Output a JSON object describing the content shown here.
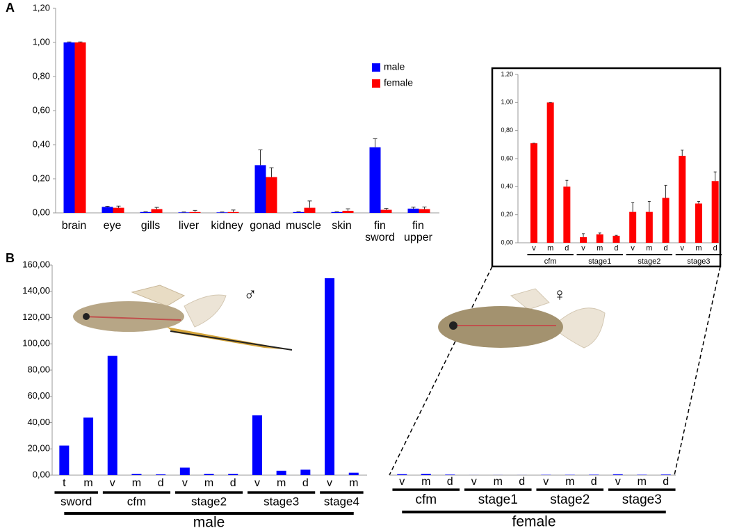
{
  "chart_data": [
    {
      "type": "bar",
      "panel_label": "A",
      "categories": [
        "brain",
        "eye",
        "gills",
        "liver",
        "kidney",
        "gonad",
        "muscle",
        "skin",
        "fin sword",
        "fin upper"
      ],
      "series": [
        {
          "name": "male",
          "color": "#0000ff",
          "values": [
            1.0,
            0.035,
            0.005,
            0.003,
            0.003,
            0.28,
            0.005,
            0.005,
            0.385,
            0.025
          ],
          "errors": [
            0.003,
            0.004,
            0.002,
            0.002,
            0.002,
            0.09,
            0.002,
            0.002,
            0.05,
            0.008
          ]
        },
        {
          "name": "female",
          "color": "#ff0000",
          "values": [
            1.0,
            0.03,
            0.022,
            0.005,
            0.005,
            0.21,
            0.03,
            0.012,
            0.018,
            0.022
          ],
          "errors": [
            0.003,
            0.01,
            0.01,
            0.01,
            0.012,
            0.055,
            0.04,
            0.012,
            0.008,
            0.012
          ]
        }
      ],
      "ylim": [
        0,
        1.2
      ],
      "yticks": [
        {
          "value": 0,
          "label": "0,00"
        },
        {
          "value": 0.2,
          "label": "0,20"
        },
        {
          "value": 0.4,
          "label": "0,40"
        },
        {
          "value": 0.6,
          "label": "0,60"
        },
        {
          "value": 0.8,
          "label": "0,80"
        },
        {
          "value": 1.0,
          "label": "1,00"
        },
        {
          "value": 1.2,
          "label": "1,20"
        }
      ],
      "legend": "upper right"
    },
    {
      "type": "bar",
      "panel_label": "B",
      "annotation": "♂",
      "color": "#0000ff",
      "group_label": "male",
      "groups": [
        {
          "name": "sword",
          "categories": [
            "t",
            "m"
          ],
          "values": [
            22.5,
            43.8
          ]
        },
        {
          "name": "cfm",
          "categories": [
            "v",
            "m",
            "d"
          ],
          "values": [
            90.8,
            1.0,
            0.6
          ]
        },
        {
          "name": "stage2",
          "categories": [
            "v",
            "m",
            "d"
          ],
          "values": [
            5.7,
            1.0,
            1.0
          ]
        },
        {
          "name": "stage3",
          "categories": [
            "v",
            "m",
            "d"
          ],
          "values": [
            45.5,
            3.3,
            4.2
          ]
        },
        {
          "name": "stage4",
          "categories": [
            "v",
            "m"
          ],
          "values": [
            150,
            1.8
          ]
        }
      ],
      "ylim": [
        0,
        160
      ],
      "yticks": [
        {
          "value": 0,
          "label": "0,00"
        },
        {
          "value": 20,
          "label": "20,00"
        },
        {
          "value": 40,
          "label": "40,00"
        },
        {
          "value": 60,
          "label": "60,00"
        },
        {
          "value": 80,
          "label": "80,00"
        },
        {
          "value": 100,
          "label": "100,00"
        },
        {
          "value": 120,
          "label": "120,00"
        },
        {
          "value": 140,
          "label": "140,00"
        },
        {
          "value": 160,
          "label": "160,00"
        }
      ]
    },
    {
      "type": "bar",
      "annotation": "♀",
      "color": "#0000ff",
      "group_label": "female",
      "groups": [
        {
          "name": "cfm",
          "categories": [
            "v",
            "m",
            "d"
          ],
          "values": [
            0.71,
            1.0,
            0.4
          ]
        },
        {
          "name": "stage1",
          "categories": [
            "v",
            "m",
            "d"
          ],
          "values": [
            0.04,
            0.06,
            0.05
          ]
        },
        {
          "name": "stage2",
          "categories": [
            "v",
            "m",
            "d"
          ],
          "values": [
            0.22,
            0.22,
            0.32
          ]
        },
        {
          "name": "stage3",
          "categories": [
            "v",
            "m",
            "d"
          ],
          "values": [
            0.62,
            0.28,
            0.44
          ]
        }
      ],
      "ylim": [
        0,
        160
      ]
    },
    {
      "type": "bar",
      "color": "#ff0000",
      "groups": [
        {
          "name": "cfm",
          "categories": [
            "v",
            "m",
            "d"
          ],
          "values": [
            0.71,
            1.0,
            0.4
          ],
          "errors": [
            0,
            0,
            0.045
          ]
        },
        {
          "name": "stage1",
          "categories": [
            "v",
            "m",
            "d"
          ],
          "values": [
            0.04,
            0.06,
            0.05
          ],
          "errors": [
            0.025,
            0.01,
            0.003
          ]
        },
        {
          "name": "stage2",
          "categories": [
            "v",
            "m",
            "d"
          ],
          "values": [
            0.22,
            0.22,
            0.32
          ],
          "errors": [
            0.065,
            0.075,
            0.09
          ]
        },
        {
          "name": "stage3",
          "categories": [
            "v",
            "m",
            "d"
          ],
          "values": [
            0.62,
            0.28,
            0.44
          ],
          "errors": [
            0.04,
            0.015,
            0.065
          ]
        }
      ],
      "ylim": [
        0,
        1.2
      ],
      "yticks": [
        {
          "value": 0,
          "label": "0,00"
        },
        {
          "value": 0.2,
          "label": "0,20"
        },
        {
          "value": 0.4,
          "label": "0,40"
        },
        {
          "value": 0.6,
          "label": "0,60"
        },
        {
          "value": 0.8,
          "label": "0,80"
        },
        {
          "value": 1.0,
          "label": "1,00"
        },
        {
          "value": 1.2,
          "label": "1,20"
        }
      ]
    }
  ]
}
